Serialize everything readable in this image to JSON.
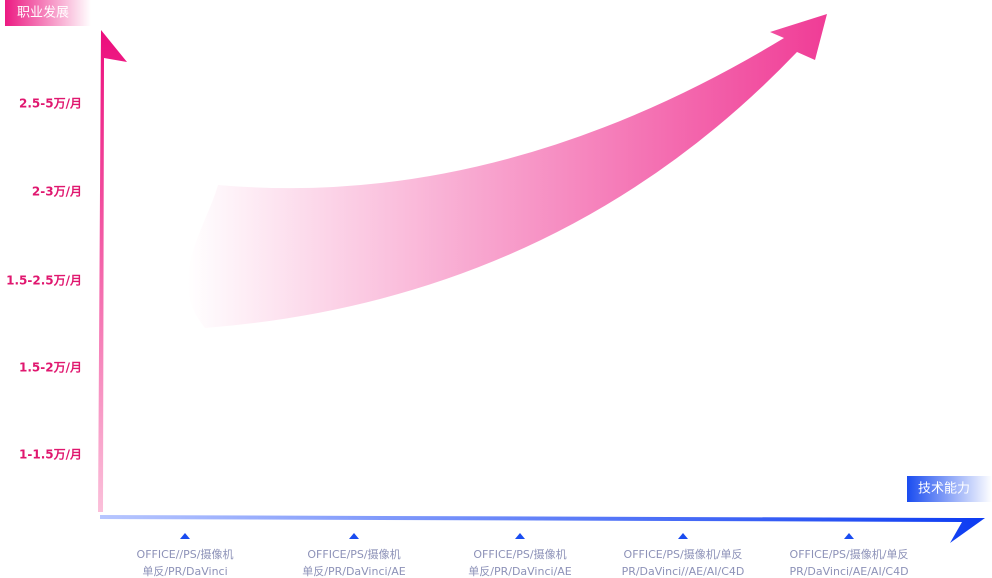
{
  "y_axis": {
    "title": "职业发展",
    "labels": [
      "2.5-5万/月",
      "2-3万/月",
      "1.5-2.5万/月",
      "1.5-2万/月",
      "1-1.5万/月"
    ]
  },
  "x_axis": {
    "title": "技术能力",
    "labels": [
      [
        "OFFICE//PS/摄像机",
        "单反/PR/DaVinci"
      ],
      [
        "OFFICE/PS/摄像机",
        "单反/PR/DaVinci/AE"
      ],
      [
        "OFFICE/PS/摄像机",
        "单反/PR/DaVinci/AE"
      ],
      [
        "OFFICE/PS/摄像机/单反",
        "PR/DaVinci//AE/AI/C4D"
      ],
      [
        "OFFICE/PS/摄像机/单反",
        "PR/DaVinci/AE/AI/C4D"
      ]
    ]
  }
}
